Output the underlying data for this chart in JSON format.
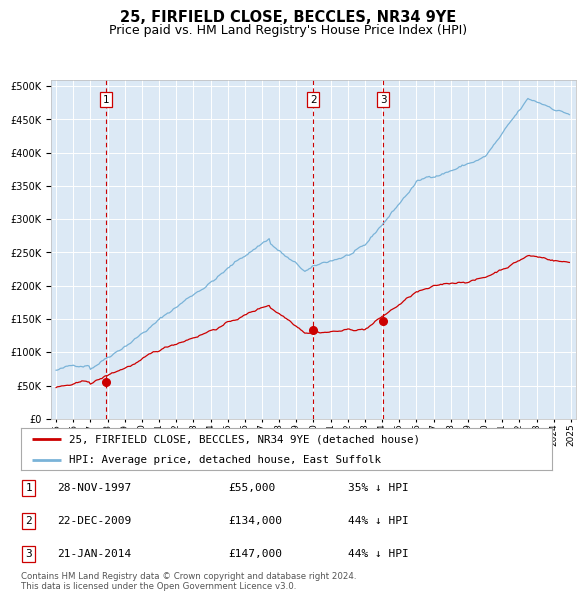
{
  "title": "25, FIRFIELD CLOSE, BECCLES, NR34 9YE",
  "subtitle": "Price paid vs. HM Land Registry's House Price Index (HPI)",
  "title_fontsize": 10.5,
  "subtitle_fontsize": 9,
  "background_color": "#ffffff",
  "plot_bg_color": "#dce9f5",
  "hpi_color": "#7ab3d8",
  "price_color": "#cc0000",
  "ylim": [
    0,
    500000
  ],
  "yticks": [
    0,
    50000,
    100000,
    150000,
    200000,
    250000,
    300000,
    350000,
    400000,
    450000,
    500000
  ],
  "sale_dates": [
    1997.92,
    2009.98,
    2014.07
  ],
  "sale_prices": [
    55000,
    134000,
    147000
  ],
  "vline_color": "#cc0000",
  "marker_color": "#cc0000",
  "legend_entries": [
    "25, FIRFIELD CLOSE, BECCLES, NR34 9YE (detached house)",
    "HPI: Average price, detached house, East Suffolk"
  ],
  "table_rows": [
    [
      "1",
      "28-NOV-1997",
      "£55,000",
      "35% ↓ HPI"
    ],
    [
      "2",
      "22-DEC-2009",
      "£134,000",
      "44% ↓ HPI"
    ],
    [
      "3",
      "21-JAN-2014",
      "£147,000",
      "44% ↓ HPI"
    ]
  ],
  "footnote": "Contains HM Land Registry data © Crown copyright and database right 2024.\nThis data is licensed under the Open Government Licence v3.0."
}
